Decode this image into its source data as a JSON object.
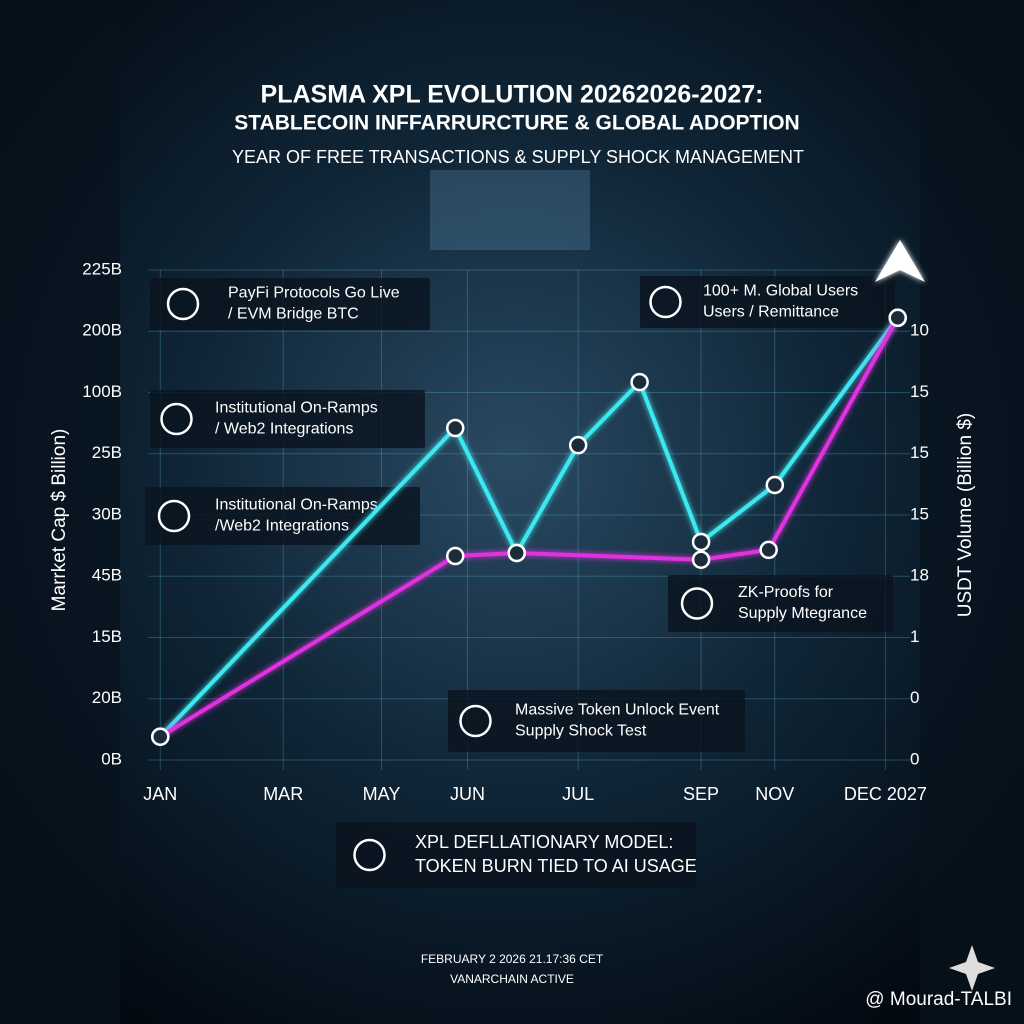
{
  "chart_data": {
    "type": "line",
    "title": "PLASMA XPL EVOLUTION 20262026-2027:",
    "title_line2": "STABLECOIN INFFARRURCTURE & GLOBAL ADOPTION",
    "subtitle": "YEAR  OF FREE TRANSACTIONS & SUPPLY SHOCK MANAGEMENT",
    "ylabel": "Marrket Cap  $ Billion)",
    "y2label": "USDT Volume (Billion $)",
    "xlim": [
      -0.2,
      12.2
    ],
    "xticks": [
      {
        "value": 0,
        "label": "JAN"
      },
      {
        "value": 2,
        "label": "MAR"
      },
      {
        "value": 3.6,
        "label": "MAY"
      },
      {
        "value": 5,
        "label": "JUN"
      },
      {
        "value": 6.8,
        "label": "JUL"
      },
      {
        "value": 8.8,
        "label": "SEP"
      },
      {
        "value": 10,
        "label": "NOV"
      },
      {
        "value": 11.8,
        "label": "DEC 2027"
      }
    ],
    "ylim": [
      0,
      8
    ],
    "yticks": [
      {
        "value": 8,
        "label": "225B"
      },
      {
        "value": 7,
        "label": "200B"
      },
      {
        "value": 6,
        "label": "100B"
      },
      {
        "value": 5,
        "label": "25B"
      },
      {
        "value": 4,
        "label": "30B"
      },
      {
        "value": 3,
        "label": "45B"
      },
      {
        "value": 2,
        "label": "15B"
      },
      {
        "value": 1,
        "label": "20B"
      },
      {
        "value": 0,
        "label": "0B"
      }
    ],
    "y2lim": [
      0,
      8
    ],
    "y2ticks": [
      {
        "value": 7,
        "label": "10"
      },
      {
        "value": 6,
        "label": "15"
      },
      {
        "value": 5,
        "label": "15"
      },
      {
        "value": 4,
        "label": "15"
      },
      {
        "value": 3,
        "label": "18"
      },
      {
        "value": 2,
        "label": "1"
      },
      {
        "value": 1,
        "label": "0"
      },
      {
        "value": 0,
        "label": "0"
      }
    ],
    "grid": true,
    "series": [
      {
        "color": "#3ee8f0",
        "x": [
          0,
          4.8,
          5.8,
          6.8,
          7.8,
          8.8,
          10,
          12
        ],
        "values": [
          0.38,
          5.42,
          3.38,
          5.14,
          6.17,
          3.56,
          4.49,
          7.22
        ]
      },
      {
        "color": "#e030e0",
        "x": [
          0,
          4.8,
          5.8,
          8.8,
          9.9,
          12
        ],
        "values": [
          0.38,
          3.33,
          3.38,
          3.27,
          3.43,
          7.22
        ]
      }
    ],
    "annotations": [
      {
        "lines": [
          "PayFi Protocols Go Live",
          "/ EVM Bridge BTC"
        ]
      },
      {
        "lines": [
          "Institutional On-Ramps",
          "/ Web2 Integrations"
        ]
      },
      {
        "lines": [
          "Institutional On-Ramps",
          "/Web2 Integrations"
        ]
      },
      {
        "lines": [
          "100+ M. Global Users",
          "Users / Remittance"
        ]
      },
      {
        "lines": [
          "ZK-Proofs for",
          "Supply Mtegrance"
        ]
      },
      {
        "lines": [
          "Massive Token Unlock Event",
          "Supply Shock Test"
        ]
      },
      {
        "lines": [
          "XPL DEFLLATIONARY MODEL:",
          "TOKEN BURN TIED TO AI USAGE"
        ]
      }
    ]
  },
  "footer": {
    "timestamp": "FEBRUARY 2 2026 21.17:36 CET",
    "status": "VANARCHAIN ACTIVE",
    "watermark": "@ Mourad-TALBI"
  }
}
